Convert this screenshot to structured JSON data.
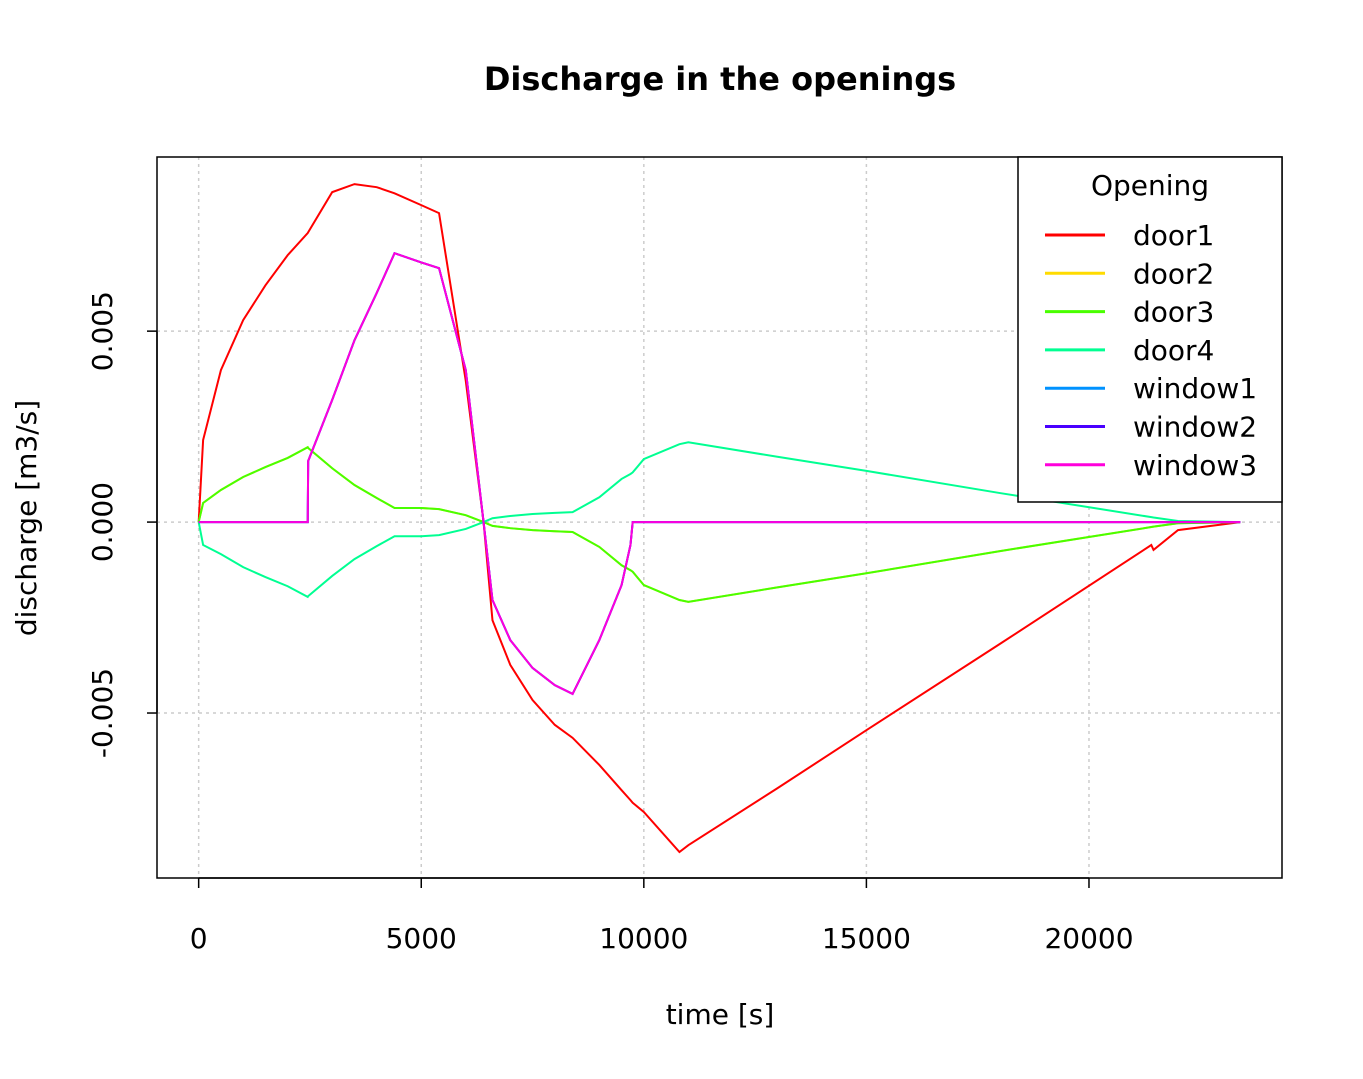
{
  "chart_data": {
    "type": "line",
    "title": "Discharge in the openings",
    "x_label": "time [s]",
    "y_label": "discharge [m3/s]",
    "x": [
      0,
      100,
      500,
      1000,
      1500,
      2000,
      2450,
      2460,
      3000,
      3500,
      4000,
      4400,
      5000,
      5400,
      6000,
      6400,
      6600,
      7000,
      7500,
      8000,
      8400,
      9000,
      9500,
      9700,
      9750,
      10000,
      10800,
      11000,
      13000,
      15000,
      18000,
      21400,
      21450,
      22000,
      23400
    ],
    "series": [
      {
        "name": "door1",
        "color": "#FF0000",
        "values": [
          0,
          0.00215,
          0.00398,
          0.00529,
          0.0062,
          0.00699,
          0.00757,
          0.00759,
          0.00864,
          0.00885,
          0.00877,
          0.00861,
          0.0083,
          0.00809,
          0.0037,
          0,
          -0.00257,
          -0.00374,
          -0.00466,
          -0.00531,
          -0.00565,
          -0.00636,
          -0.00702,
          -0.00728,
          -0.00735,
          -0.00759,
          -0.00864,
          -0.00846,
          -0.00697,
          -0.00545,
          -0.00319,
          -0.0006,
          -0.00073,
          -0.00021,
          0
        ]
      },
      {
        "name": "door2",
        "color": "#FFDB00",
        "values": [
          0,
          0.0005,
          0.00084,
          0.00118,
          0.00144,
          0.00168,
          0.00196,
          0.00194,
          0.00141,
          0.00097,
          0.00063,
          0.00037,
          0.00037,
          0.00034,
          0.00018,
          0,
          -0.0001,
          -0.00016,
          -0.00021,
          -0.00024,
          -0.00026,
          -0.00065,
          -0.00113,
          -0.00126,
          -0.0013,
          -0.00165,
          -0.00204,
          -0.00209,
          -0.00171,
          -0.00134,
          -0.00076,
          -0.00013,
          -0.00012,
          -3e-05,
          0
        ]
      },
      {
        "name": "door3",
        "color": "#49FF00",
        "values": [
          0,
          0.0005,
          0.00084,
          0.00118,
          0.00144,
          0.00168,
          0.00196,
          0.00194,
          0.00141,
          0.00097,
          0.00063,
          0.00037,
          0.00037,
          0.00034,
          0.00018,
          0,
          -0.0001,
          -0.00016,
          -0.00021,
          -0.00024,
          -0.00026,
          -0.00065,
          -0.00113,
          -0.00126,
          -0.0013,
          -0.00165,
          -0.00204,
          -0.00209,
          -0.00171,
          -0.00134,
          -0.00076,
          -0.00013,
          -0.00012,
          -3e-05,
          0
        ]
      },
      {
        "name": "door4",
        "color": "#00FF92",
        "values": [
          0,
          -0.0006,
          -0.00084,
          -0.00118,
          -0.00144,
          -0.00168,
          -0.00196,
          -0.00194,
          -0.00141,
          -0.00097,
          -0.00063,
          -0.00037,
          -0.00037,
          -0.00034,
          -0.00018,
          0,
          0.0001,
          0.00016,
          0.00021,
          0.00024,
          0.00026,
          0.00065,
          0.00113,
          0.00126,
          0.0013,
          0.00165,
          0.00204,
          0.00209,
          0.00171,
          0.00134,
          0.00076,
          0.00013,
          0.00012,
          3e-05,
          0
        ]
      },
      {
        "name": "window1",
        "color": "#0092FF",
        "values": [
          0,
          0,
          0,
          0,
          0,
          0,
          0,
          0.0016,
          0.0032,
          0.00476,
          0.006,
          0.00704,
          0.0068,
          0.00665,
          0.00398,
          0,
          -0.00204,
          -0.00309,
          -0.00382,
          -0.00427,
          -0.0045,
          -0.00309,
          -0.00165,
          -0.0006,
          0,
          0,
          0,
          0,
          0,
          0,
          0,
          0,
          0,
          0,
          0
        ]
      },
      {
        "name": "window2",
        "color": "#4900FF",
        "values": [
          0,
          0,
          0,
          0,
          0,
          0,
          0,
          0.0016,
          0.0032,
          0.00476,
          0.006,
          0.00704,
          0.0068,
          0.00665,
          0.00398,
          0,
          -0.00204,
          -0.00309,
          -0.00382,
          -0.00427,
          -0.0045,
          -0.00309,
          -0.00165,
          -0.0006,
          0,
          0,
          0,
          0,
          0,
          0,
          0,
          0,
          0,
          0,
          0
        ]
      },
      {
        "name": "window3",
        "color": "#FF00DB",
        "values": [
          0,
          0,
          0,
          0,
          0,
          0,
          0,
          0.0016,
          0.0032,
          0.00476,
          0.006,
          0.00704,
          0.0068,
          0.00665,
          0.00398,
          0,
          -0.00204,
          -0.00309,
          -0.00382,
          -0.00427,
          -0.0045,
          -0.00309,
          -0.00165,
          -0.0006,
          0,
          0,
          0,
          0,
          0,
          0,
          0,
          0,
          0,
          0,
          0
        ]
      }
    ],
    "xlim": [
      -936,
      24336
    ],
    "ylim": [
      -0.00932,
      0.00956
    ],
    "xticks": [
      0,
      5000,
      10000,
      15000,
      20000
    ],
    "yticks": [
      -0.005,
      {
        "value": 0,
        "label": "0.000"
      },
      0.005
    ],
    "grid": true,
    "legend_title": "Opening",
    "legend_position": "top-right"
  }
}
